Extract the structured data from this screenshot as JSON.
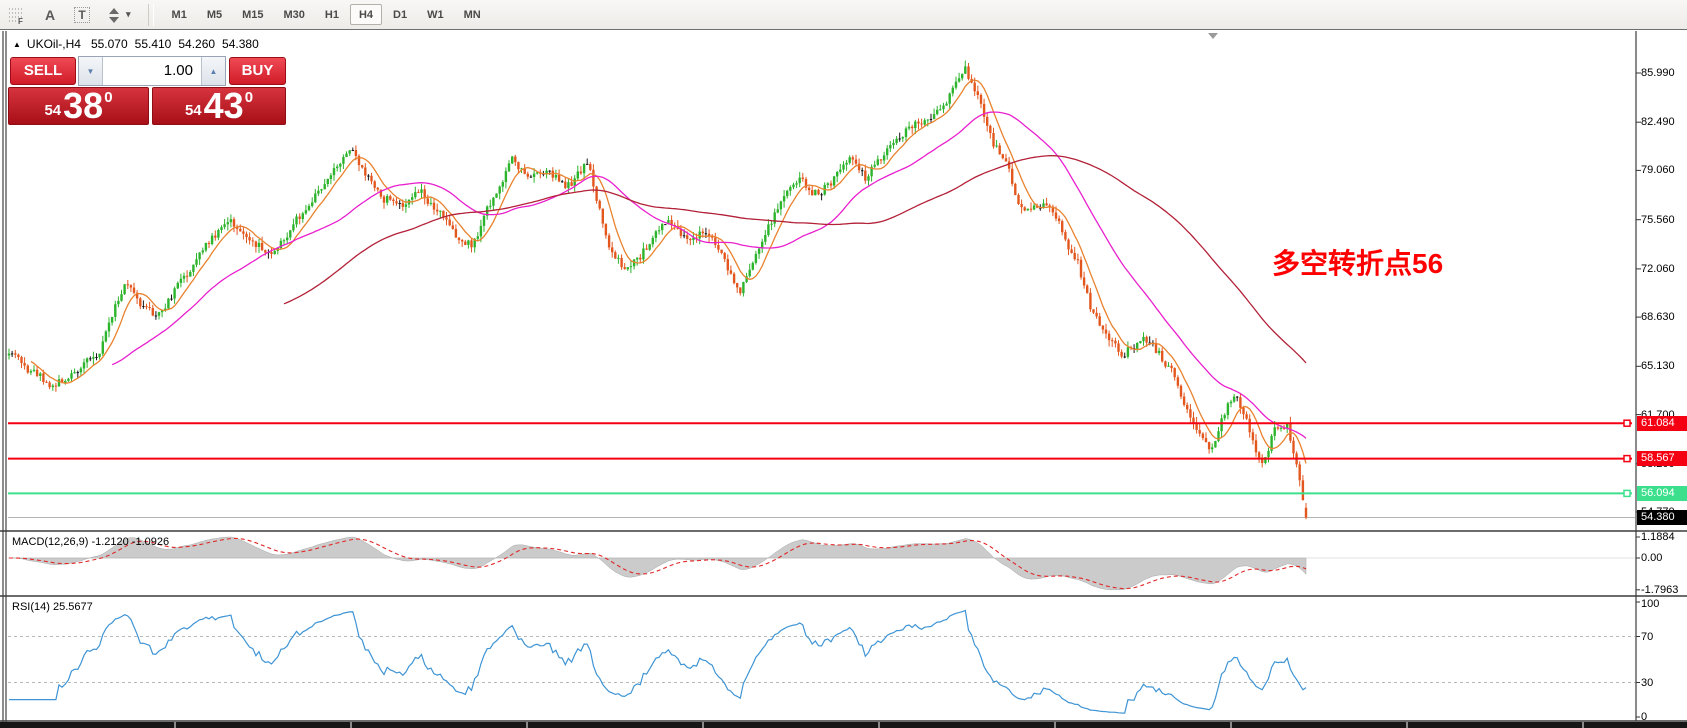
{
  "toolbar": {
    "timeframes": [
      "M1",
      "M5",
      "M15",
      "M30",
      "H1",
      "H4",
      "D1",
      "W1",
      "MN"
    ],
    "active_timeframe": "H4",
    "icon_a_glyph": "A",
    "icon_t_glyph": "T"
  },
  "header": {
    "collapse_glyph": "▲",
    "symbol": "UKOil-,H4",
    "open": "55.070",
    "high": "55.410",
    "low": "54.260",
    "close": "54.380"
  },
  "trade_panel": {
    "sell_label": "SELL",
    "buy_label": "BUY",
    "volume": "1.00",
    "sell": {
      "prefix": "54",
      "main": "38",
      "sup": "0"
    },
    "buy": {
      "prefix": "54",
      "main": "43",
      "sup": "0"
    }
  },
  "annotation": {
    "text": "多空转折点56",
    "color": "#ff0000"
  },
  "price_axis": {
    "ticks": [
      "85.990",
      "82.490",
      "79.060",
      "75.560",
      "72.060",
      "68.630",
      "65.130",
      "61.700",
      "58.200",
      "54.770"
    ]
  },
  "indicators": {
    "macd": {
      "label": "MACD(12,26,9) -1.2120 -1.0926",
      "scale": [
        "1.1884",
        "0.00",
        "-1.7963"
      ]
    },
    "rsi": {
      "label": "RSI(14) 25.5677",
      "scale": [
        "100",
        "70",
        "30",
        "0"
      ]
    }
  },
  "colors": {
    "bull": "#2cb42c",
    "bear": "#e3571f",
    "doji": "#161616",
    "ma_fast": "#e9822e",
    "ma_mid": "#e920ce",
    "ma_slow": "#b32138",
    "macd_fill": "#cbcbcb",
    "macd_signal": "#e02828",
    "rsi_line": "#3e94d4",
    "grid_dash": "#b8b8b8",
    "current_line": "#b4b4b4",
    "level_red": "#f50013",
    "level_green": "#3ce08c",
    "chip_black": "#000000"
  },
  "chart_data": {
    "type": "candlestick",
    "symbol": "UKOil-",
    "timeframe": "H4",
    "current_bar": {
      "open": 55.07,
      "high": 55.41,
      "low": 54.26,
      "close": 54.38
    },
    "bars": 416,
    "price_axis_ticks": [
      85.99,
      82.49,
      79.06,
      75.56,
      72.06,
      68.63,
      65.13,
      61.7,
      58.2,
      54.77
    ],
    "levels": [
      {
        "value": 61.084,
        "label": "61.084",
        "type": "resistance",
        "color": "#f50013",
        "chip_bg": "#f50013",
        "width": 2,
        "handle": true
      },
      {
        "value": 58.567,
        "label": "58.567",
        "type": "resistance",
        "color": "#f50013",
        "chip_bg": "#f50013",
        "width": 2,
        "handle": true
      },
      {
        "value": 56.094,
        "label": "56.094",
        "type": "support",
        "color": "#3ce08c",
        "chip_bg": "#3ce08c",
        "width": 2,
        "handle": true
      },
      {
        "value": 54.38,
        "label": "54.380",
        "type": "current-price",
        "color": "#b4b4b4",
        "chip_bg": "#000000",
        "width": 1,
        "handle": false
      }
    ],
    "moving_averages": [
      {
        "period": 8,
        "color": "#e9822e"
      },
      {
        "period": 34,
        "color": "#e920ce"
      },
      {
        "period": 89,
        "color": "#b32138"
      }
    ],
    "macd": {
      "params": [
        12,
        26,
        9
      ],
      "current_macd": -1.212,
      "current_signal": -1.0926,
      "range_max": 1.1884,
      "range_min": -1.7963
    },
    "rsi": {
      "period": 14,
      "current": 25.5677,
      "levels": [
        70,
        30
      ],
      "range": [
        0,
        100
      ]
    },
    "price_path_anchors": [
      [
        9,
        66.2
      ],
      [
        28,
        64.9
      ],
      [
        55,
        63.8
      ],
      [
        78,
        64.9
      ],
      [
        98,
        65.8
      ],
      [
        115,
        69.5
      ],
      [
        126,
        71.2
      ],
      [
        142,
        69.4
      ],
      [
        157,
        68.6
      ],
      [
        175,
        70.6
      ],
      [
        200,
        73.2
      ],
      [
        230,
        75.5
      ],
      [
        252,
        74.1
      ],
      [
        272,
        73.0
      ],
      [
        298,
        75.6
      ],
      [
        325,
        78.2
      ],
      [
        350,
        80.5
      ],
      [
        365,
        79.0
      ],
      [
        382,
        77.2
      ],
      [
        400,
        76.6
      ],
      [
        422,
        77.6
      ],
      [
        442,
        75.8
      ],
      [
        462,
        73.9
      ],
      [
        472,
        73.7
      ],
      [
        492,
        77.0
      ],
      [
        512,
        79.8
      ],
      [
        530,
        78.3
      ],
      [
        547,
        79.1
      ],
      [
        565,
        77.9
      ],
      [
        588,
        79.5
      ],
      [
        608,
        73.8
      ],
      [
        627,
        71.9
      ],
      [
        650,
        73.9
      ],
      [
        668,
        75.7
      ],
      [
        688,
        74.1
      ],
      [
        708,
        74.7
      ],
      [
        724,
        72.6
      ],
      [
        740,
        70.4
      ],
      [
        762,
        74.0
      ],
      [
        785,
        77.2
      ],
      [
        800,
        78.4
      ],
      [
        818,
        77.3
      ],
      [
        838,
        78.9
      ],
      [
        852,
        80.0
      ],
      [
        865,
        78.4
      ],
      [
        882,
        80.3
      ],
      [
        905,
        81.8
      ],
      [
        928,
        82.6
      ],
      [
        948,
        84.3
      ],
      [
        965,
        86.3
      ],
      [
        978,
        84.3
      ],
      [
        992,
        81.2
      ],
      [
        1006,
        79.8
      ],
      [
        1020,
        76.6
      ],
      [
        1035,
        76.3
      ],
      [
        1048,
        76.7
      ],
      [
        1062,
        74.9
      ],
      [
        1078,
        72.4
      ],
      [
        1092,
        69.0
      ],
      [
        1108,
        67.2
      ],
      [
        1124,
        65.9
      ],
      [
        1142,
        67.3
      ],
      [
        1158,
        66.1
      ],
      [
        1172,
        64.6
      ],
      [
        1186,
        62.2
      ],
      [
        1199,
        60.2
      ],
      [
        1212,
        59.3
      ],
      [
        1224,
        61.6
      ],
      [
        1234,
        63.2
      ],
      [
        1246,
        61.2
      ],
      [
        1257,
        58.9
      ],
      [
        1264,
        58.3
      ],
      [
        1275,
        60.6
      ],
      [
        1287,
        60.9
      ],
      [
        1295,
        58.3
      ],
      [
        1301,
        56.6
      ],
      [
        1305,
        55.2
      ],
      [
        1306,
        54.4
      ]
    ]
  }
}
